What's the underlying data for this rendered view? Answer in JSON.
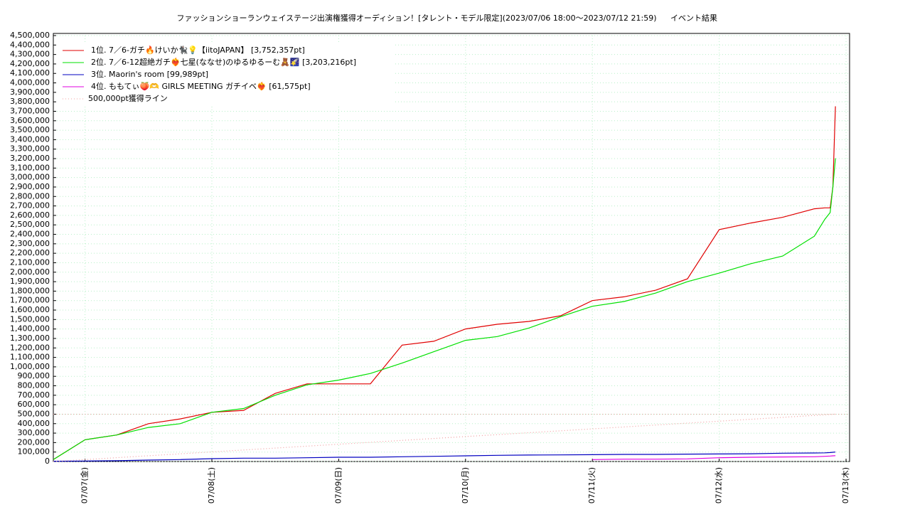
{
  "chart_data": {
    "type": "line",
    "title": "ファッションショーランウェイステージ出演権獲得オーディション！[タレント・モデル限定](2023/07/06 18:00～2023/07/12 21:59)",
    "subtitle": "イベント結果",
    "x": [
      "07/06 18:00",
      "07/07 00:00",
      "07/07 06:00",
      "07/07 12:00",
      "07/07 18:00",
      "07/08 00:00",
      "07/08 06:00",
      "07/08 12:00",
      "07/08 18:00",
      "07/09 00:00",
      "07/09 06:00",
      "07/09 12:00",
      "07/09 18:00",
      "07/10 00:00",
      "07/10 06:00",
      "07/10 12:00",
      "07/10 18:00",
      "07/11 00:00",
      "07/11 06:00",
      "07/11 12:00",
      "07/11 18:00",
      "07/12 00:00",
      "07/12 06:00",
      "07/12 12:00",
      "07/12 18:00",
      "07/12 20:00",
      "07/12 21:00",
      "07/12 21:30",
      "07/12 21:59"
    ],
    "series": [
      {
        "name": "1位. 7／6-ガチ🔥けいか🐈‍⬛💡【iitoJAPAN】 [3,752,357pt]",
        "color": "#e00000",
        "values": [
          20000,
          230000,
          280000,
          400000,
          450000,
          520000,
          540000,
          720000,
          820000,
          820000,
          820000,
          1230000,
          1270000,
          1400000,
          1450000,
          1480000,
          1540000,
          1700000,
          1740000,
          1810000,
          1930000,
          2450000,
          2520000,
          2580000,
          2670000,
          2680000,
          2680000,
          2900000,
          3752357
        ]
      },
      {
        "name": "2位. 7／6-12超絶ガチ❤️‍🔥七星(ななせ)のゆるゆるーむ🧸🌠 [3,203,216pt]",
        "color": "#00e000",
        "values": [
          20000,
          230000,
          280000,
          360000,
          400000,
          520000,
          560000,
          700000,
          810000,
          860000,
          930000,
          1040000,
          1160000,
          1280000,
          1320000,
          1410000,
          1530000,
          1640000,
          1690000,
          1780000,
          1900000,
          1990000,
          2090000,
          2170000,
          2380000,
          2560000,
          2630000,
          2900000,
          3203216
        ]
      },
      {
        "name": "3位. Maorin's room [99,989pt]",
        "color": "#0000c0",
        "values": [
          3000,
          5000,
          8000,
          15000,
          20000,
          30000,
          35000,
          35000,
          40000,
          45000,
          45000,
          50000,
          55000,
          60000,
          65000,
          68000,
          70000,
          72000,
          75000,
          75000,
          78000,
          80000,
          82000,
          88000,
          90000,
          92000,
          95000,
          98000,
          99989
        ]
      },
      {
        "name": "4位. ももてぃ🍑🫶 GIRLS MEETING ガチイベ❤️‍🔥 [61,575pt]",
        "color": "#e000e0",
        "values": [
          null,
          null,
          null,
          null,
          null,
          null,
          null,
          null,
          null,
          null,
          null,
          null,
          null,
          null,
          null,
          null,
          null,
          20000,
          25000,
          25000,
          28000,
          40000,
          45000,
          48000,
          50000,
          55000,
          58000,
          60000,
          61575
        ]
      },
      {
        "name": "500,000pt獲得ライン",
        "color": "#f0a0a0",
        "dashed": true,
        "x": [
          "07/06 18:00",
          "07/12 21:59"
        ],
        "values": [
          0,
          500000
        ]
      }
    ],
    "hlines": [
      500000
    ],
    "xlim": [
      "07/06 18:00",
      "07/13 00:40"
    ],
    "xticks": [
      {
        "value": "07/07 00:00",
        "label": "07/07(金)"
      },
      {
        "value": "07/08 00:00",
        "label": "07/08(土)"
      },
      {
        "value": "07/09 00:00",
        "label": "07/09(日)"
      },
      {
        "value": "07/10 00:00",
        "label": "07/10(月)"
      },
      {
        "value": "07/11 00:00",
        "label": "07/11(火)"
      },
      {
        "value": "07/12 00:00",
        "label": "07/12(水)"
      },
      {
        "value": "07/13 00:00",
        "label": "07/13(木)"
      }
    ],
    "ylim": [
      0,
      4500000
    ],
    "yticks": [
      0,
      {
        "value": 100000,
        "label": "100,000"
      },
      {
        "value": 200000,
        "label": "200,000"
      },
      {
        "value": 300000,
        "label": "300,000"
      },
      {
        "value": 400000,
        "label": "400,000"
      },
      {
        "value": 500000,
        "label": "500,000"
      },
      {
        "value": 600000,
        "label": "600,000"
      },
      {
        "value": 700000,
        "label": "700,000"
      },
      {
        "value": 800000,
        "label": "800,000"
      },
      {
        "value": 900000,
        "label": "900,000"
      },
      {
        "value": 1000000,
        "label": "1,000,000"
      },
      {
        "value": 1100000,
        "label": "1,100,000"
      },
      {
        "value": 1200000,
        "label": "1,200,000"
      },
      {
        "value": 1300000,
        "label": "1,300,000"
      },
      {
        "value": 1400000,
        "label": "1,400,000"
      },
      {
        "value": 1500000,
        "label": "1,500,000"
      },
      {
        "value": 1600000,
        "label": "1,600,000"
      },
      {
        "value": 1700000,
        "label": "1,700,000"
      },
      {
        "value": 1800000,
        "label": "1,800,000"
      },
      {
        "value": 1900000,
        "label": "1,900,000"
      },
      {
        "value": 2000000,
        "label": "2,000,000"
      },
      {
        "value": 2100000,
        "label": "2,100,000"
      },
      {
        "value": 2200000,
        "label": "2,200,000"
      },
      {
        "value": 2300000,
        "label": "2,300,000"
      },
      {
        "value": 2400000,
        "label": "2,400,000"
      },
      {
        "value": 2500000,
        "label": "2,500,000"
      },
      {
        "value": 2600000,
        "label": "2,600,000"
      },
      {
        "value": 2700000,
        "label": "2,700,000"
      },
      {
        "value": 2800000,
        "label": "2,800,000"
      },
      {
        "value": 2900000,
        "label": "2,900,000"
      },
      {
        "value": 3000000,
        "label": "3,000,000"
      },
      {
        "value": 3100000,
        "label": "3,100,000"
      },
      {
        "value": 3200000,
        "label": "3,200,000"
      },
      {
        "value": 3300000,
        "label": "3,300,000"
      },
      {
        "value": 3400000,
        "label": "3,400,000"
      },
      {
        "value": 3500000,
        "label": "3,500,000"
      },
      {
        "value": 3600000,
        "label": "3,600,000"
      },
      {
        "value": 3700000,
        "label": "3,700,000"
      },
      {
        "value": 3800000,
        "label": "3,800,000"
      },
      {
        "value": 3900000,
        "label": "3,900,000"
      },
      {
        "value": 4000000,
        "label": "4,000,000"
      },
      {
        "value": 4100000,
        "label": "4,100,000"
      },
      {
        "value": 4200000,
        "label": "4,200,000"
      },
      {
        "value": 4300000,
        "label": "4,300,000"
      },
      {
        "value": 4400000,
        "label": "4,400,000"
      },
      {
        "value": 4500000,
        "label": "4,500,000"
      }
    ],
    "grid": true
  }
}
